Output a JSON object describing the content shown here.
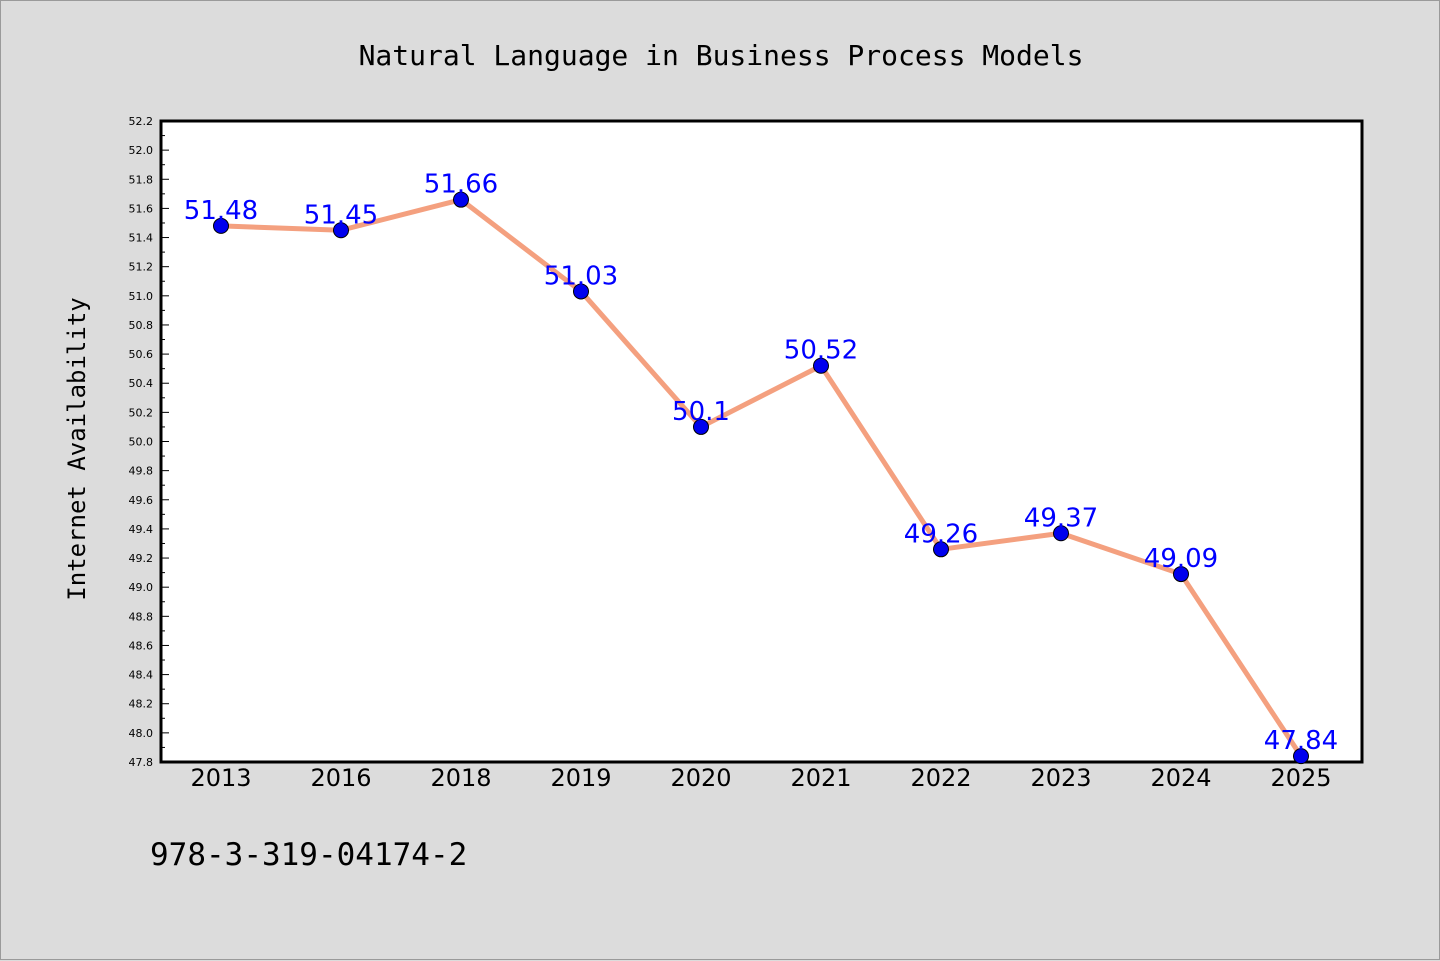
{
  "chart_data": {
    "type": "line",
    "title": "Natural Language in Business Process Models",
    "xlabel": "",
    "ylabel": "Internet Availability",
    "categories": [
      "2013",
      "2016",
      "2018",
      "2019",
      "2020",
      "2021",
      "2022",
      "2023",
      "2024",
      "2025"
    ],
    "series": [
      {
        "values": [
          51.48,
          51.45,
          51.66,
          51.03,
          50.1,
          50.52,
          49.26,
          49.37,
          49.09,
          47.84
        ],
        "data_labels": [
          "51.48",
          "51.45",
          "51.66",
          "51.03",
          "50.1",
          "50.52",
          "49.26",
          "49.37",
          "49.09",
          "47.84"
        ],
        "line_color": "#f4a07f",
        "marker_color": "#0000ee"
      }
    ],
    "ylim": [
      47.8,
      52.2
    ],
    "yticks": [
      "47.8",
      "48.0",
      "48.2",
      "48.4",
      "48.6",
      "48.8",
      "49.0",
      "49.2",
      "49.4",
      "49.6",
      "49.8",
      "50.0",
      "50.2",
      "50.4",
      "50.6",
      "50.8",
      "51.0",
      "51.2",
      "51.4",
      "51.6",
      "51.8",
      "52.0",
      "52.2"
    ],
    "grid": false,
    "legend": "none",
    "label_color": "#0000ff"
  },
  "footer_text": "978-3-319-04174-2",
  "colors": {
    "background": "#dcdcdc",
    "plot_background": "#ffffff"
  }
}
